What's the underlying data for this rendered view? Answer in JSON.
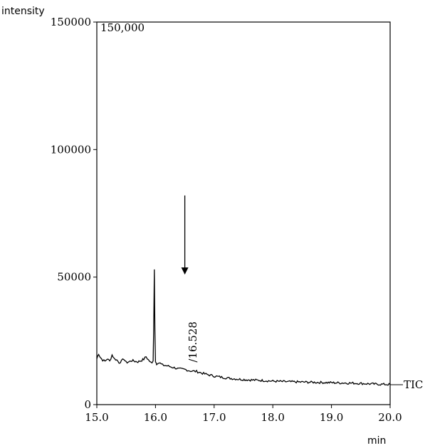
{
  "chart_data": {
    "type": "line",
    "title": "",
    "xlabel": "min",
    "ylabel": "intensity",
    "xlim": [
      15.0,
      20.0
    ],
    "ylim": [
      0,
      150000
    ],
    "scale_label": "150,000",
    "series_label": "TIC",
    "x_ticks": [
      15.0,
      16.0,
      17.0,
      18.0,
      19.0,
      20.0
    ],
    "x_tick_labels": [
      "15.0",
      "16.0",
      "17.0",
      "18.0",
      "19.0",
      "20.0"
    ],
    "y_ticks": [
      0,
      50000,
      100000,
      150000
    ],
    "y_tick_labels": [
      "0",
      "50000",
      "100000",
      "150000"
    ],
    "annotations": [
      {
        "text": "/16.528",
        "x": 16.528,
        "y": 16000
      },
      {
        "type": "arrow",
        "x": 16.5,
        "y_start": 82000,
        "y_end": 51000
      }
    ],
    "series": [
      {
        "x": [
          15.0,
          15.03,
          15.06,
          15.1,
          15.14,
          15.18,
          15.22,
          15.26,
          15.3,
          15.34,
          15.38,
          15.42,
          15.46,
          15.5,
          15.55,
          15.6,
          15.65,
          15.7,
          15.75,
          15.8,
          15.84,
          15.88,
          15.92,
          15.94,
          15.96,
          15.97,
          15.98,
          15.985,
          15.99,
          16.0,
          16.01,
          16.02,
          16.04,
          16.08,
          16.12,
          16.2,
          16.3,
          16.4,
          16.5,
          16.6,
          16.7,
          16.8,
          16.9,
          17.0,
          17.2,
          17.4,
          17.6,
          17.8,
          18.0,
          18.2,
          18.4,
          18.6,
          18.8,
          19.0,
          19.2,
          19.4,
          19.6,
          19.8,
          20.0
        ],
        "y": [
          18000,
          20000,
          18500,
          17500,
          17000,
          18000,
          17000,
          19500,
          18000,
          17500,
          16500,
          17000,
          18000,
          16500,
          16800,
          17300,
          17000,
          16800,
          17200,
          17800,
          18800,
          17500,
          16500,
          16200,
          17500,
          30000,
          53000,
          40000,
          29000,
          17000,
          16500,
          16000,
          16500,
          16200,
          15500,
          15200,
          14600,
          14000,
          13800,
          13200,
          13000,
          12300,
          11700,
          11200,
          10500,
          10000,
          9700,
          9500,
          9200,
          9000,
          8900,
          8800,
          8700,
          8600,
          8500,
          8400,
          8200,
          8000,
          7900
        ]
      }
    ]
  }
}
